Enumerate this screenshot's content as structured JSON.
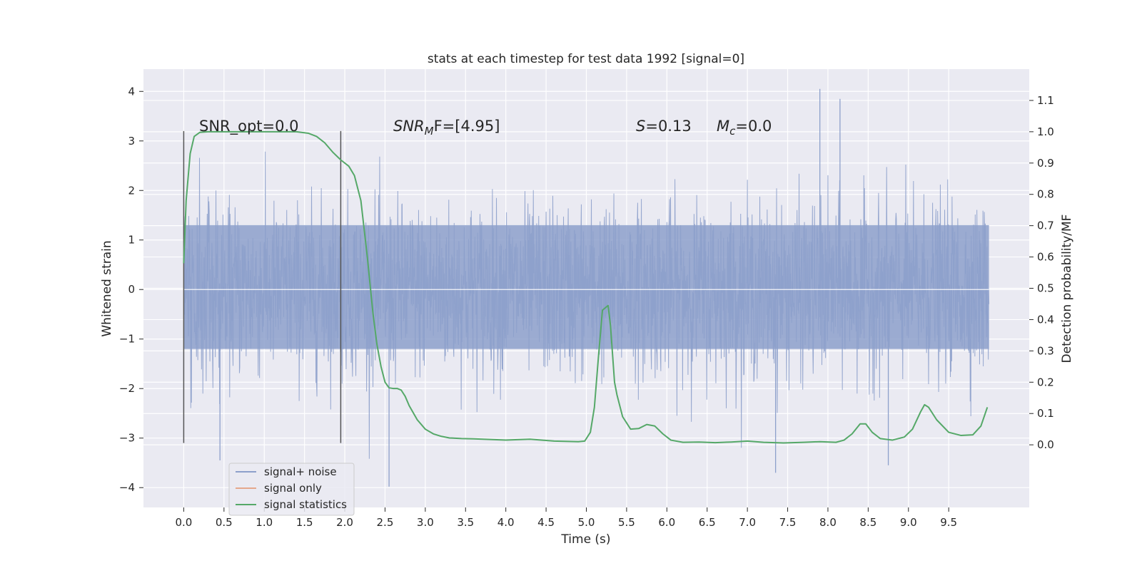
{
  "chart_data": {
    "type": "line",
    "title": "stats at each timestep for test data 1992 [signal=0]",
    "xlabel": "Time (s)",
    "ylabel": "Whitened strain",
    "y2label": "Detection probability/MF",
    "xlim": [
      -0.5,
      10.5
    ],
    "ylim": [
      -4.4,
      4.45
    ],
    "y2lim": [
      -0.2,
      1.2
    ],
    "x_ticks": [
      "0.0",
      "0.5",
      "1.0",
      "1.5",
      "2.0",
      "2.5",
      "3.0",
      "3.5",
      "4.0",
      "4.5",
      "5.0",
      "5.5",
      "6.0",
      "6.5",
      "7.0",
      "7.5",
      "8.0",
      "8.5",
      "9.0",
      "9.5"
    ],
    "y_ticks": [
      "−4",
      "−3",
      "−2",
      "−1",
      "0",
      "1",
      "2",
      "3",
      "4"
    ],
    "y2_ticks": [
      "0.0",
      "0.1",
      "0.2",
      "0.3",
      "0.4",
      "0.5",
      "0.6",
      "0.7",
      "0.8",
      "0.9",
      "1.0",
      "1.1"
    ],
    "grid": true,
    "legend_position": "lower-left",
    "legend": [
      {
        "label": "signal+ noise",
        "color": "#8da0cb"
      },
      {
        "label": "signal only",
        "color": "#e5a78c"
      },
      {
        "label": "signal statistics",
        "color": "#55a868"
      }
    ],
    "annotations": {
      "snr_opt": "SNR_opt=0.0",
      "snr_mf_main": "SNR",
      "snr_mf_sub": "M",
      "snr_mf_rest": "F=[4.95]",
      "s_main": "S",
      "s_rest": "=0.13",
      "mc_main": "M",
      "mc_sub": "c",
      "mc_rest": "=0.0"
    },
    "window_markers": [
      0.0,
      1.95
    ],
    "marker_range": [
      -3.1,
      3.2
    ],
    "noise_series": {
      "name": "signal+ noise",
      "x_range": [
        0.0,
        10.0
      ],
      "envelope_inner": [
        -1.2,
        1.3
      ],
      "typical_extent": [
        -2.4,
        2.5
      ],
      "extreme_max": 4.05,
      "extreme_min": -3.98
    },
    "statistics_series": {
      "name": "signal statistics",
      "axis": "right",
      "x": [
        0.0,
        0.03,
        0.08,
        0.13,
        0.2,
        0.3,
        0.5,
        1.0,
        1.4,
        1.55,
        1.65,
        1.75,
        1.85,
        1.95,
        2.05,
        2.12,
        2.2,
        2.28,
        2.35,
        2.4,
        2.45,
        2.5,
        2.55,
        2.6,
        2.65,
        2.7,
        2.75,
        2.8,
        2.9,
        3.0,
        3.1,
        3.2,
        3.3,
        3.45,
        3.6,
        3.8,
        4.0,
        4.3,
        4.6,
        4.9,
        4.98,
        5.05,
        5.1,
        5.15,
        5.2,
        5.27,
        5.3,
        5.35,
        5.38,
        5.45,
        5.55,
        5.65,
        5.75,
        5.85,
        5.95,
        6.05,
        6.2,
        6.4,
        6.6,
        6.8,
        7.0,
        7.2,
        7.45,
        7.7,
        7.9,
        8.1,
        8.2,
        8.3,
        8.4,
        8.47,
        8.55,
        8.65,
        8.8,
        8.95,
        9.05,
        9.15,
        9.2,
        9.25,
        9.35,
        9.5,
        9.65,
        9.8,
        9.9,
        9.98
      ],
      "y": [
        0.58,
        0.78,
        0.93,
        0.985,
        0.998,
        1.0,
        1.0,
        1.0,
        1.0,
        0.995,
        0.985,
        0.965,
        0.935,
        0.91,
        0.89,
        0.86,
        0.78,
        0.6,
        0.42,
        0.32,
        0.25,
        0.2,
        0.182,
        0.18,
        0.18,
        0.175,
        0.155,
        0.125,
        0.08,
        0.05,
        0.035,
        0.027,
        0.022,
        0.02,
        0.019,
        0.017,
        0.015,
        0.018,
        0.012,
        0.01,
        0.012,
        0.04,
        0.12,
        0.28,
        0.43,
        0.445,
        0.38,
        0.2,
        0.16,
        0.09,
        0.05,
        0.052,
        0.065,
        0.06,
        0.035,
        0.015,
        0.008,
        0.009,
        0.007,
        0.009,
        0.012,
        0.008,
        0.006,
        0.008,
        0.01,
        0.008,
        0.015,
        0.035,
        0.067,
        0.067,
        0.04,
        0.02,
        0.015,
        0.025,
        0.05,
        0.105,
        0.128,
        0.12,
        0.08,
        0.04,
        0.03,
        0.032,
        0.06,
        0.12
      ]
    }
  }
}
